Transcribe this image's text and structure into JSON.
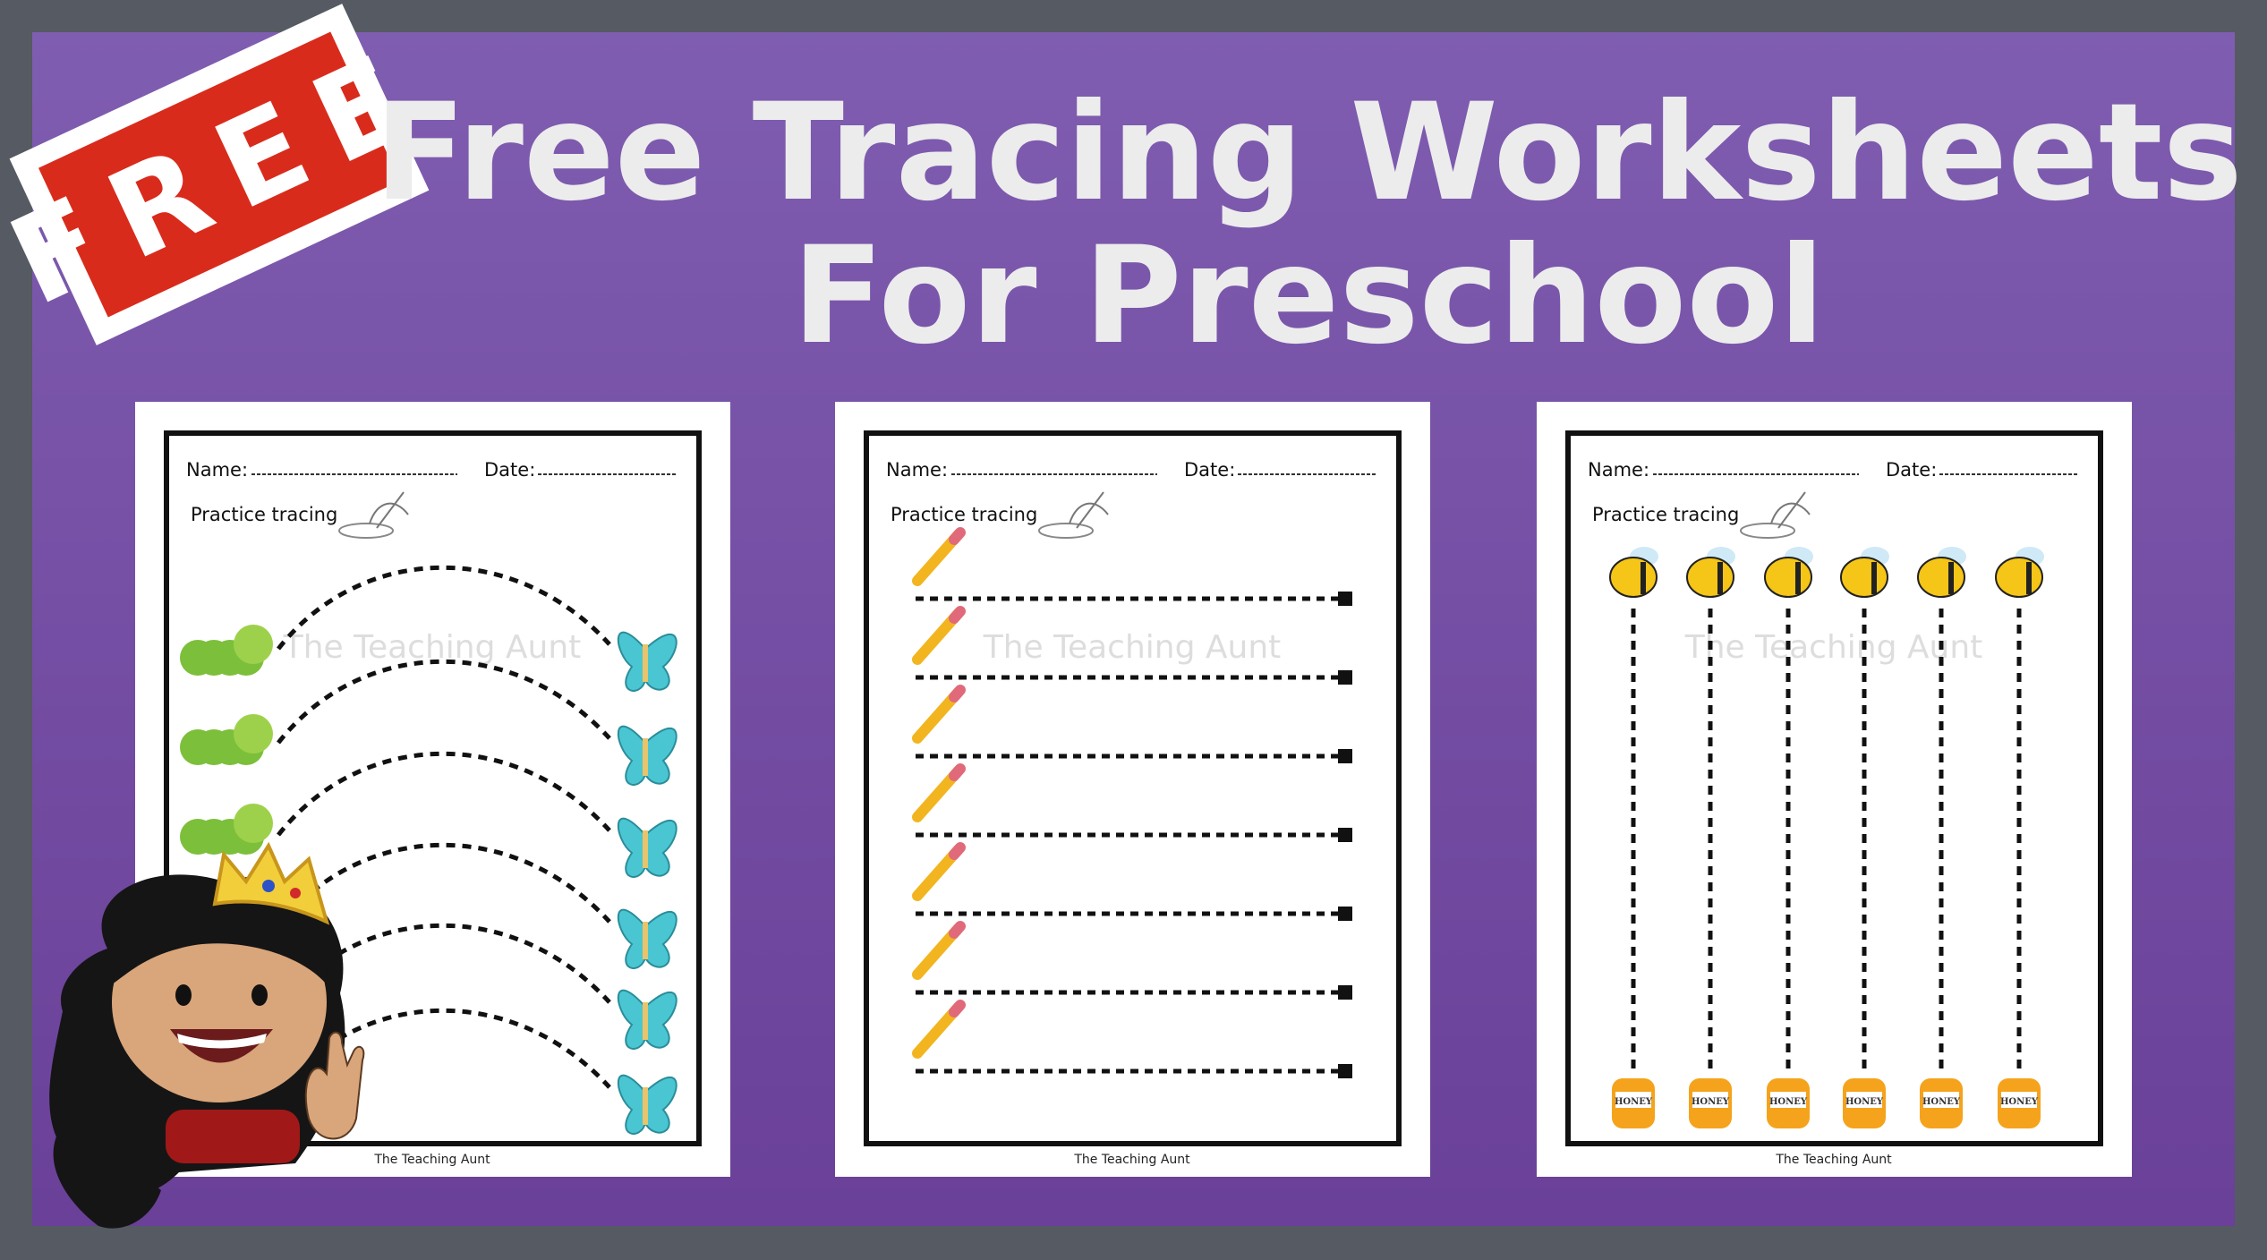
{
  "banner": {
    "stamp_text": "FREE",
    "title_line1": "Free Tracing Worksheets",
    "title_line2": "For Preschool"
  },
  "colors": {
    "background": "#555a63",
    "panel_top": "#7f5db0",
    "panel_bottom": "#6a4098",
    "stamp_red": "#d92b1c",
    "title_text": "#ececec"
  },
  "worksheets": [
    {
      "name_label": "Name:",
      "date_label": "Date:",
      "instruction": "Practice tracing",
      "watermark": "The Teaching Aunt",
      "footer": "The Teaching Aunt",
      "theme": "caterpillar-to-butterfly curves"
    },
    {
      "name_label": "Name:",
      "date_label": "Date:",
      "instruction": "Practice tracing",
      "watermark": "The Teaching Aunt",
      "footer": "The Teaching Aunt",
      "theme": "pencil horizontal lines"
    },
    {
      "name_label": "Name:",
      "date_label": "Date:",
      "instruction": "Practice tracing",
      "watermark": "The Teaching Aunt",
      "footer": "The Teaching Aunt",
      "theme": "bee-to-honey vertical lines",
      "jar_label": "HONEY"
    }
  ]
}
